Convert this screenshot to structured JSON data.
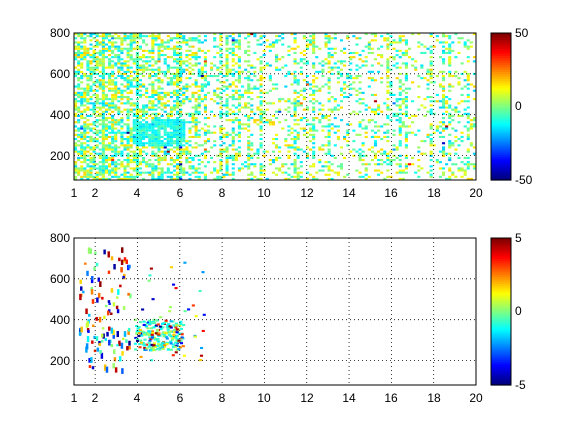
{
  "figure": {
    "background": "#ffffff"
  },
  "chart_data": [
    {
      "type": "heatmap",
      "title": "",
      "xlabel": "",
      "ylabel": "",
      "xlim": [
        1,
        20
      ],
      "ylim": [
        80,
        800
      ],
      "x_ticks": [
        1,
        2,
        4,
        6,
        8,
        10,
        12,
        14,
        16,
        18,
        20
      ],
      "y_ticks": [
        200,
        400,
        600,
        800
      ],
      "grid": true,
      "colormap": "jet",
      "colorbar": {
        "range": [
          -50,
          50
        ],
        "ticks": [
          -50,
          0,
          50
        ]
      },
      "density_hint": "dense sparse scatter of near-zero values (green/cyan/yellow) across the full x range, densest for x < 4 and a bright cluster near x 4-6, y 250-350",
      "color_hint": "mostly green/cyan/yellow (values near 0)"
    },
    {
      "type": "heatmap",
      "title": "",
      "xlabel": "",
      "ylabel": "",
      "xlim": [
        1,
        20
      ],
      "ylim": [
        80,
        800
      ],
      "x_ticks": [
        1,
        2,
        4,
        6,
        8,
        10,
        12,
        14,
        16,
        18,
        20
      ],
      "y_ticks": [
        200,
        400,
        600,
        800
      ],
      "grid": true,
      "colormap": "jet",
      "colorbar": {
        "range": [
          -5,
          5
        ],
        "ticks": [
          -5,
          0,
          5
        ]
      },
      "density_hint": "sparse points mostly between x 1-7, concentrated near x 4-6, y 250-400, plus scattered vertical streaks near x 1.5-3.5",
      "color_hint": "full spectrum red/blue/green with emphasis on extremes"
    }
  ]
}
